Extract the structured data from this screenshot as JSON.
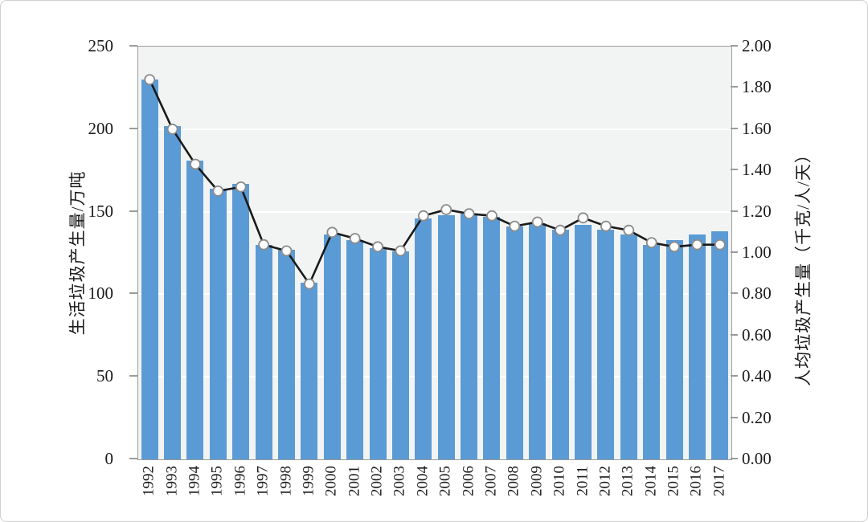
{
  "chart_data": {
    "type": "bar",
    "subtype": "dual-axis bar + line combo",
    "title": "",
    "categories": [
      "1992",
      "1993",
      "1994",
      "1995",
      "1996",
      "1997",
      "1998",
      "1999",
      "2000",
      "2001",
      "2002",
      "2003",
      "2004",
      "2005",
      "2006",
      "2007",
      "2008",
      "2009",
      "2010",
      "2011",
      "2012",
      "2013",
      "2014",
      "2015",
      "2016",
      "2017"
    ],
    "series": [
      {
        "name": "生活垃圾产生量",
        "type": "bar",
        "axis": "left",
        "unit": "万吨",
        "values": [
          230,
          202,
          181,
          164,
          167,
          130,
          127,
          107,
          136,
          133,
          128,
          126,
          146,
          148,
          149,
          147,
          141,
          143,
          139,
          142,
          139,
          136,
          130,
          133,
          136,
          138
        ]
      },
      {
        "name": "人均垃圾产生量",
        "type": "line",
        "axis": "right",
        "unit": "千克/人/天",
        "values": [
          1.84,
          1.6,
          1.43,
          1.3,
          1.32,
          1.04,
          1.01,
          0.85,
          1.1,
          1.07,
          1.03,
          1.01,
          1.18,
          1.21,
          1.19,
          1.18,
          1.13,
          1.15,
          1.11,
          1.17,
          1.13,
          1.11,
          1.05,
          1.03,
          1.04,
          1.04
        ]
      }
    ],
    "left_axis": {
      "label": "生活垃圾产生量/万吨",
      "min": 0,
      "max": 250,
      "step": 50,
      "tick_labels": [
        "0",
        "50",
        "100",
        "150",
        "200",
        "250"
      ]
    },
    "right_axis": {
      "label": "人均垃圾产生量（千克/人/天）",
      "min": 0,
      "max": 2.0,
      "step": 0.2,
      "tick_labels": [
        "0.00",
        "0.20",
        "0.40",
        "0.60",
        "0.80",
        "1.00",
        "1.20",
        "1.40",
        "1.60",
        "1.80",
        "2.00"
      ]
    },
    "x_axis": {
      "label": "",
      "tick_rotation_deg": -90
    },
    "grid": "horizontal white gridlines on light-gray plot background",
    "legend": "none",
    "colors": {
      "bar": "#5b9bd5",
      "line": "#1a1a1a",
      "marker_fill": "#fdfdfd",
      "marker_stroke": "#8c8c8c",
      "plot_background": "#f2f3f3",
      "grid": "#ffffff",
      "frame": "#9b9b9b",
      "text": "#1a1a1a"
    }
  }
}
